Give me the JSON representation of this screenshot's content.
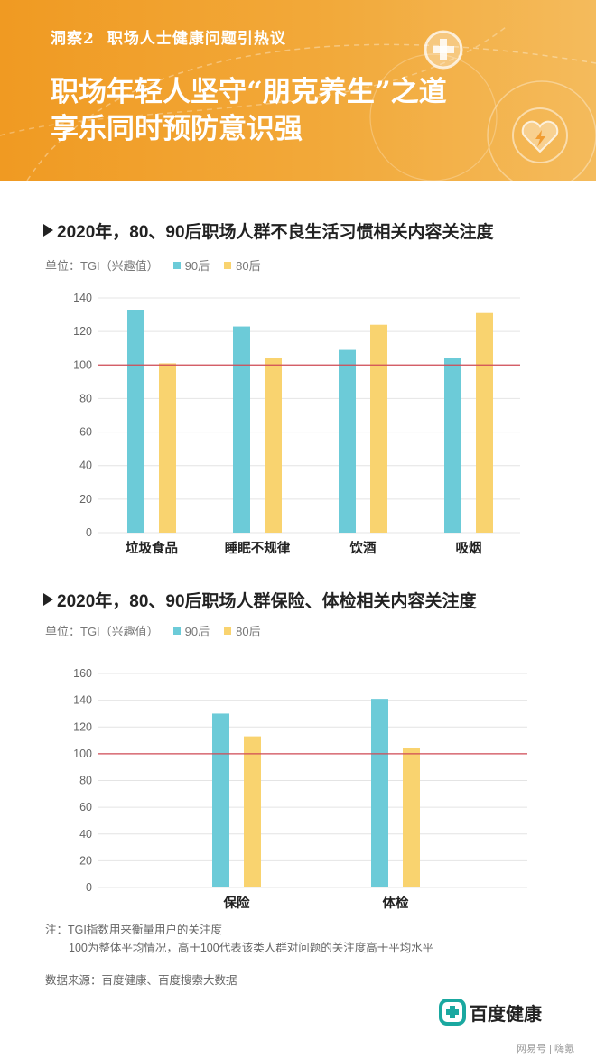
{
  "banner": {
    "insight_label": "洞察2",
    "insight_topic": "职场人士健康问题引热议",
    "headline_line1": "职场年轻人坚守“朋克养生”之道",
    "headline_line2": "享乐同时预防意识强",
    "bg_color": "#f2a32e"
  },
  "chart1": {
    "title": "2020年，80、90后职场人群不良生活习惯相关内容关注度",
    "legend_unit": "单位：TGI（兴趣值）"
  },
  "chart2": {
    "title": "2020年，80、90后职场人群保险、体检相关内容关注度",
    "legend_unit": "单位：TGI（兴趣值）"
  },
  "colors": {
    "s90": "#6ccbd8",
    "s80": "#f9d36f",
    "ref": "#d04a55"
  },
  "chart_data": [
    {
      "type": "bar",
      "title": "2020年，80、90后职场人群不良生活习惯相关内容关注度",
      "ylabel": "单位：TGI（兴趣值）",
      "categories": [
        "垃圾食品",
        "睡眠不规律",
        "饮酒",
        "吸烟"
      ],
      "series": [
        {
          "name": "90后",
          "values": [
            133,
            123,
            109,
            104
          ]
        },
        {
          "name": "80后",
          "values": [
            101,
            104,
            124,
            131
          ]
        }
      ],
      "ylim": [
        0,
        140
      ],
      "yticks": [
        0,
        20,
        40,
        60,
        80,
        100,
        120,
        140
      ],
      "reference_line": 100,
      "grid": true,
      "legend": "top-left"
    },
    {
      "type": "bar",
      "title": "2020年，80、90后职场人群保险、体检相关内容关注度",
      "ylabel": "单位：TGI（兴趣值）",
      "categories": [
        "保险",
        "体检"
      ],
      "series": [
        {
          "name": "90后",
          "values": [
            130,
            141
          ]
        },
        {
          "name": "80后",
          "values": [
            113,
            104
          ]
        }
      ],
      "ylim": [
        0,
        160
      ],
      "yticks": [
        0,
        20,
        40,
        60,
        80,
        100,
        120,
        140,
        160
      ],
      "reference_line": 100,
      "grid": true,
      "legend": "top-left"
    }
  ],
  "note": {
    "line1": "注：TGI指数用来衡量用户的关注度",
    "line2": "100为整体平均情况，高于100代表该类人群对问题的关注度高于平均水平"
  },
  "source": "数据来源：百度健康、百度搜索大数据",
  "logo": {
    "text": "百度健康"
  },
  "watermark": "网易号 | 嗨氪"
}
